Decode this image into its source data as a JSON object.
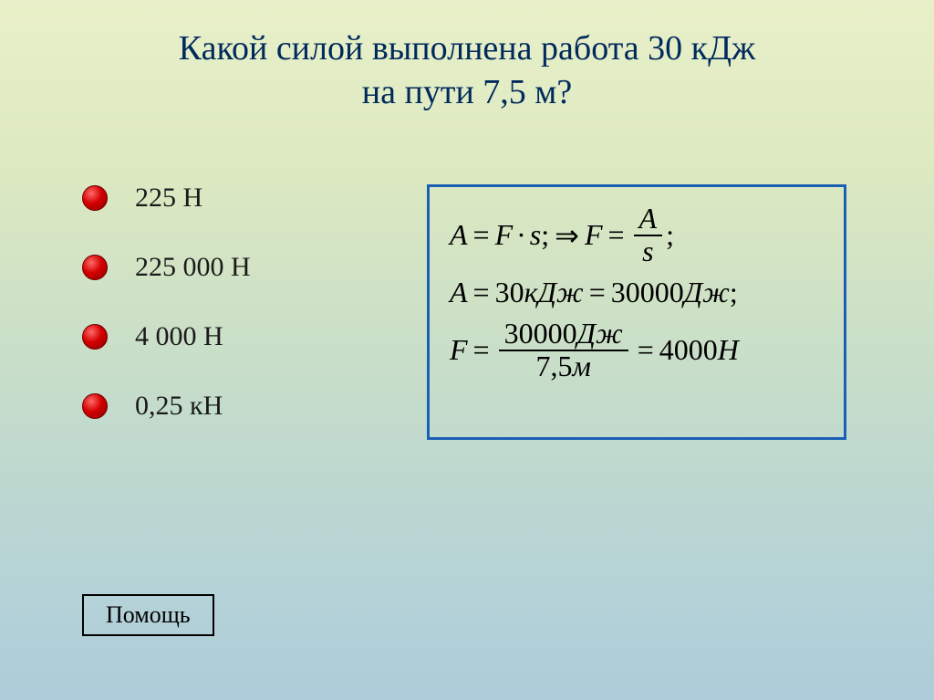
{
  "title_line1": "Какой силой выполнена работа 30 кДж",
  "title_line2": "на пути 7,5 м?",
  "answers": [
    {
      "label": "225 Н"
    },
    {
      "label": "225 000 Н"
    },
    {
      "label": "4 000 Н"
    },
    {
      "label": "0,25 кН"
    }
  ],
  "formula": {
    "r1_A": "A",
    "r1_eq1": "=",
    "r1_F": "F",
    "r1_dot": "·",
    "r1_s": "s",
    "r1_semi1": ";",
    "r1_arrow": "⇒",
    "r1_F2": "F",
    "r1_eq2": "=",
    "r1_frac_num": "A",
    "r1_frac_den": "s",
    "r1_semi2": ";",
    "r2_A": "A",
    "r2_eq1": "=",
    "r2_v1": "30",
    "r2_u1": "кДж",
    "r2_eq2": "=",
    "r2_v2": "30000",
    "r2_u2": "Дж",
    "r2_semi": ";",
    "r3_F": "F",
    "r3_eq1": "=",
    "r3_num_v": "30000",
    "r3_num_u": "Дж",
    "r3_den_v": "7,5",
    "r3_den_u": "м",
    "r3_eq2": "=",
    "r3_res_v": "4000",
    "r3_res_u": "Н"
  },
  "help_label": "Помощь",
  "colors": {
    "title": "#002a5c",
    "box_border": "#1a5fb4",
    "bullet_light": "#ff6a6a",
    "bullet_mid": "#d40000",
    "bullet_dark": "#8b0000",
    "bg_top": "#e9f0c9",
    "bg_bottom": "#aeccd9"
  }
}
